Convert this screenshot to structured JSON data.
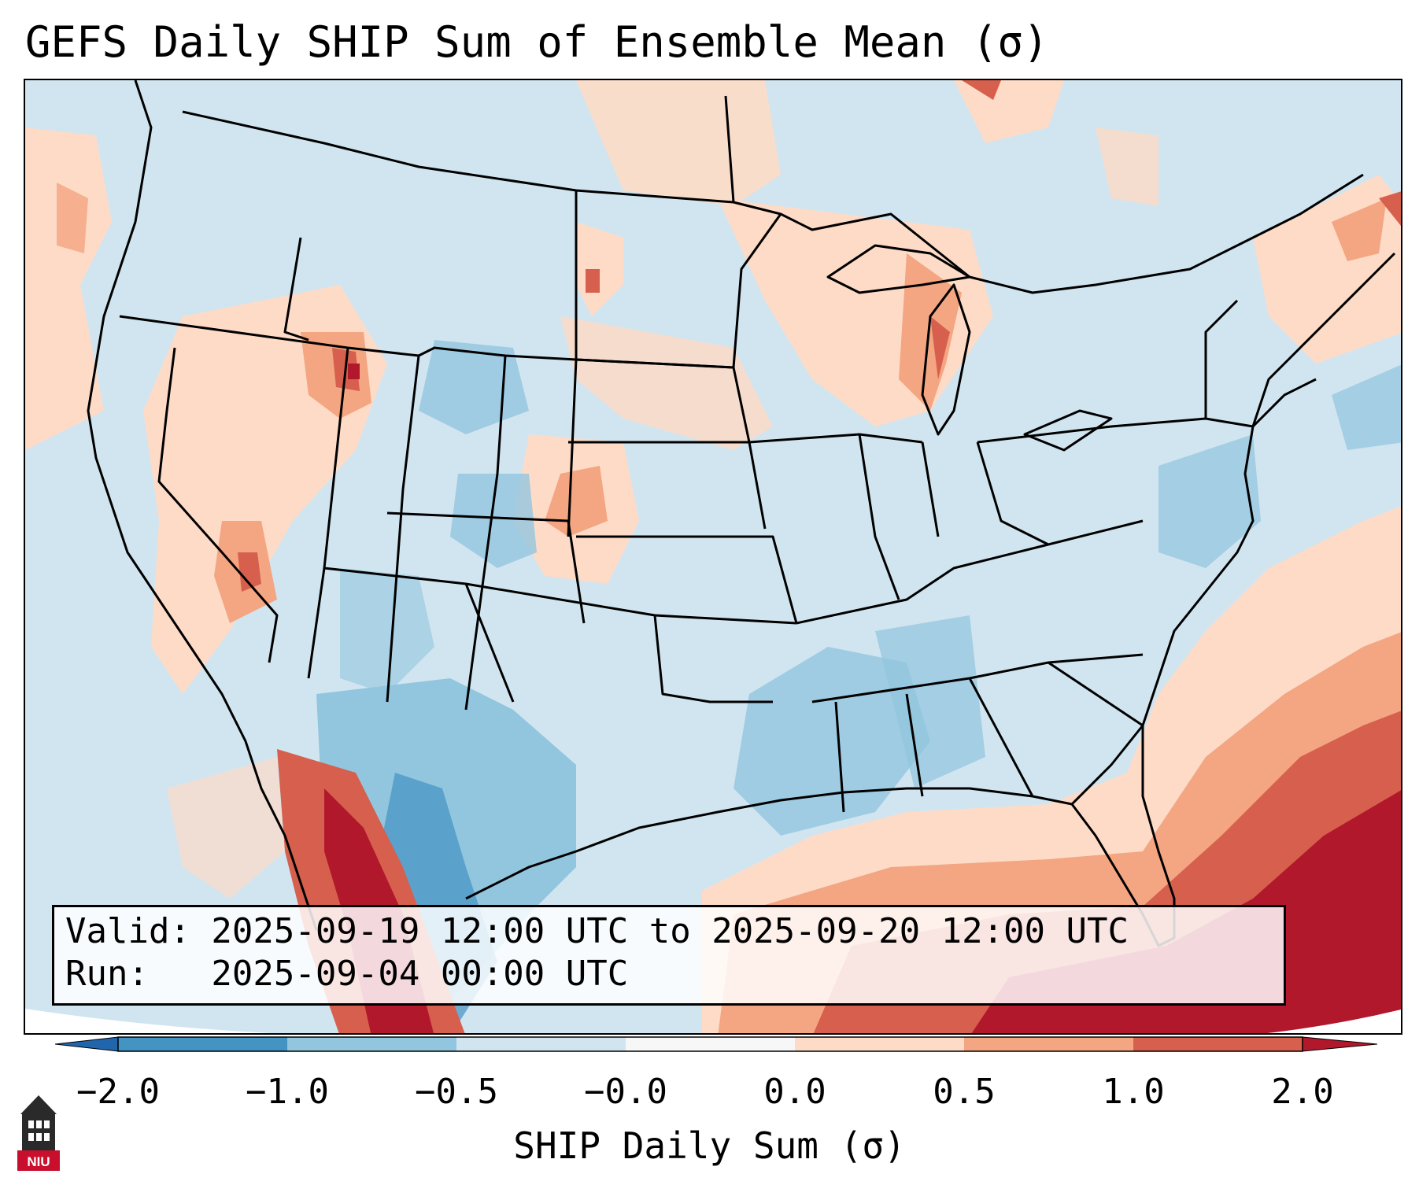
{
  "title": "GEFS Daily SHIP Sum of Ensemble Mean (σ)",
  "valid_line": "Valid: 2025-09-19 12:00 UTC to 2025-09-20 12:00 UTC",
  "run_line": "Run:   2025-09-04 00:00 UTC",
  "colorbar": {
    "label": "SHIP Daily Sum (σ)",
    "ticks": [
      "−2.0",
      "−1.0",
      "−0.5",
      "−0.0",
      "0.0",
      "0.5",
      "1.0",
      "2.0"
    ],
    "colors": [
      "#4393c3",
      "#92c5de",
      "#d1e5f0",
      "#f7f7f7",
      "#fddbc7",
      "#f4a582",
      "#d6604d",
      "#b2182b"
    ],
    "extend_low_color": "#2166ac",
    "extend_high_color": "#b2182b"
  },
  "logo": {
    "text": "NIU",
    "icon": "university-tower-icon",
    "color": "#c8102e"
  }
}
